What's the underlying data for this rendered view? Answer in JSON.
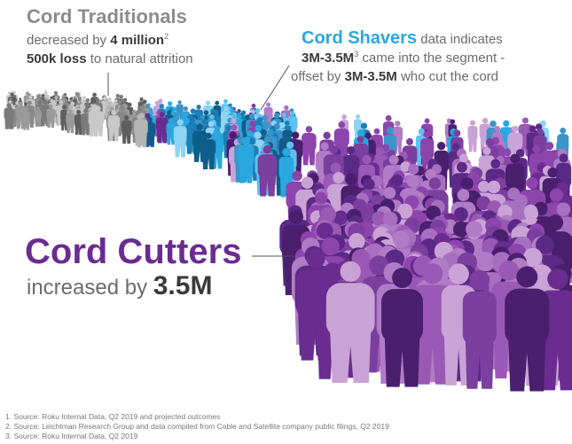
{
  "traditionals": {
    "title": "Cord Traditionals",
    "line1": {
      "prefix": "decreased by ",
      "amount": "4 million",
      "note": "2"
    },
    "line2": {
      "amount": "500k loss",
      "suffix": " to natural attrition"
    }
  },
  "shavers": {
    "title": "Cord Shavers",
    "title_suffix": " data indicates",
    "line1": {
      "amount": "3M-3.5M",
      "note": "3",
      "suffix": " came into the segment -"
    },
    "line2": {
      "prefix": "offset by ",
      "amount": "3M-3.5M",
      "suffix": " who cut the cord"
    }
  },
  "cutters": {
    "title": "Cord Cutters",
    "prefix": "increased by ",
    "amount": "3.5M"
  },
  "footnotes": [
    "1.  Source: Roku Internal Data, Q2 2019 and projected outcomes",
    "2. Source: Leichtman Research Group and data compiled from Cable and Satellite company public filings, Q2 2019",
    "3. Source:  Roku Internal Data, Q2 2019"
  ]
}
